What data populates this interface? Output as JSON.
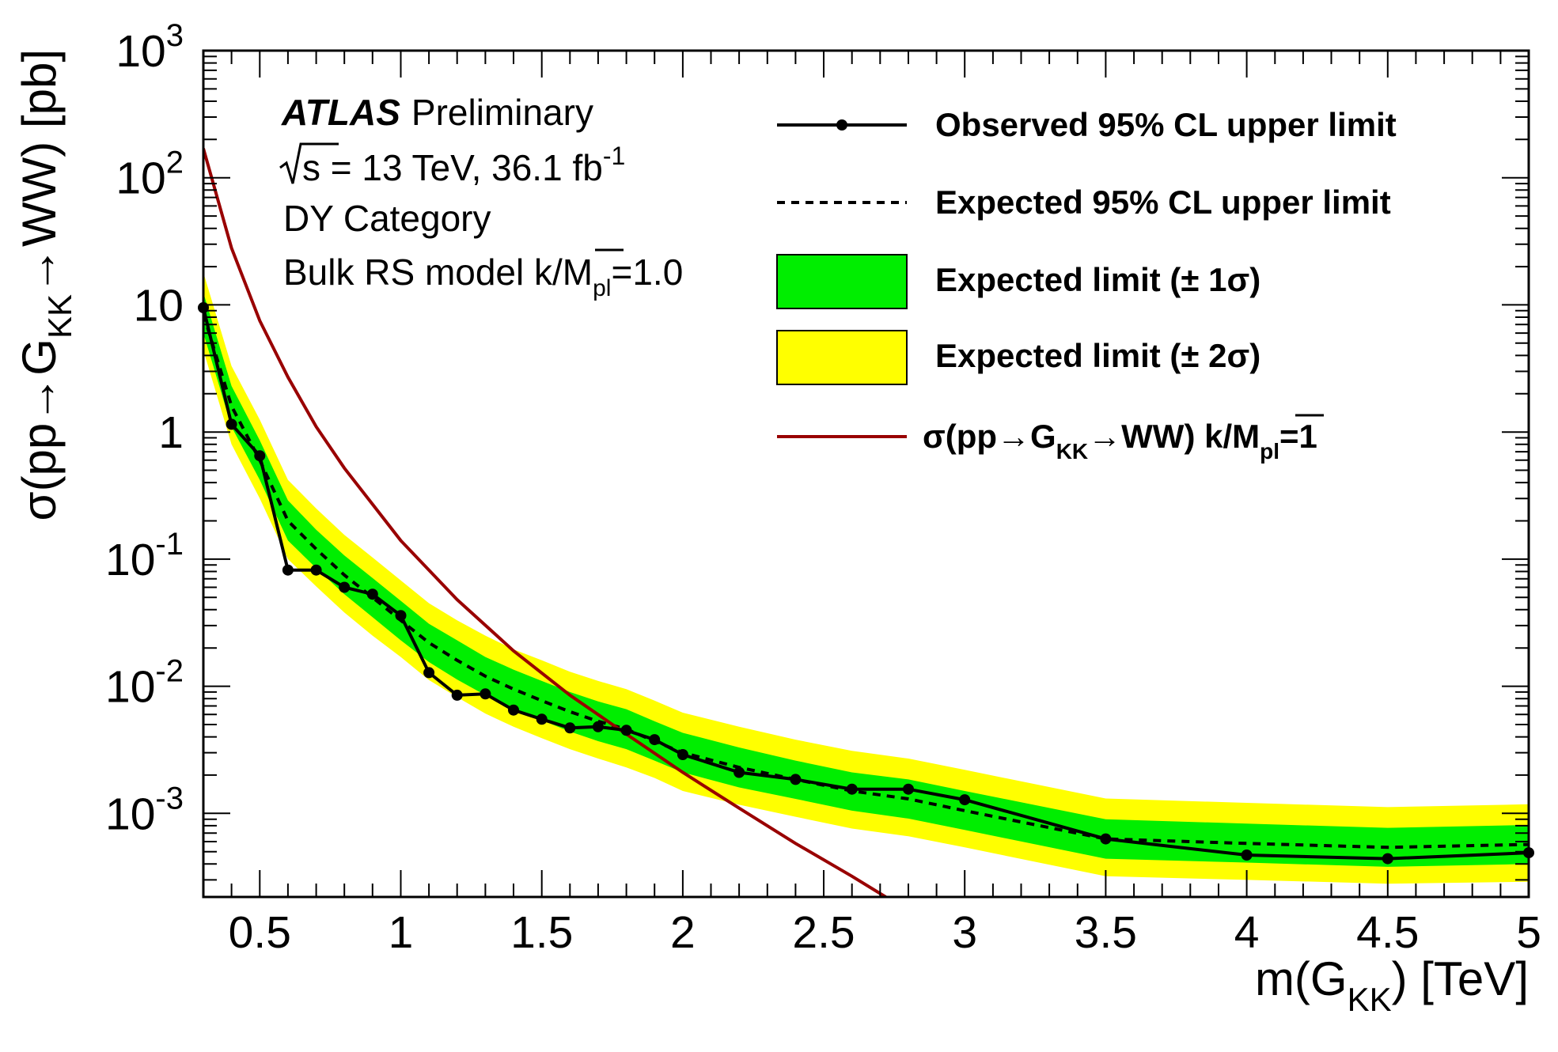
{
  "chart_data": {
    "type": "line",
    "x_axis": {
      "label_parts": [
        "m(G",
        "KK",
        ") [TeV]"
      ],
      "range": [
        0.3,
        5.0
      ],
      "ticks": [
        "0.5",
        "1",
        "1.5",
        "2",
        "2.5",
        "3",
        "3.5",
        "4",
        "4.5",
        "5"
      ],
      "tick_values": [
        0.5,
        1,
        1.5,
        2,
        2.5,
        3,
        3.5,
        4,
        4.5,
        5
      ]
    },
    "y_axis": {
      "label_parts": [
        "σ(pp→G",
        "KK",
        "→WW) [pb]"
      ],
      "scale": "log",
      "range": [
        0.00022,
        1000
      ],
      "ticks": [
        {
          "value": 1000,
          "base": "10",
          "exp": "3"
        },
        {
          "value": 100,
          "base": "10",
          "exp": "2"
        },
        {
          "value": 10,
          "base": "10",
          "exp": ""
        },
        {
          "value": 1,
          "base": "1",
          "exp": ""
        },
        {
          "value": 0.1,
          "base": "10",
          "exp": "-1"
        },
        {
          "value": 0.01,
          "base": "10",
          "exp": "-2"
        },
        {
          "value": 0.001,
          "base": "10",
          "exp": "-3"
        }
      ]
    },
    "labels": {
      "atlas": "ATLAS",
      "preliminary": "Preliminary",
      "energy_prefix": "s = 13 TeV, 36.1 fb",
      "energy_exp": "-1",
      "category": "DY Category",
      "model_prefix": "Bulk RS model k/",
      "model_m": "M",
      "model_sub": "pl",
      "model_suffix": "=1.0"
    },
    "legend": {
      "observed": "Observed 95% CL upper limit",
      "expected": "Expected 95% CL upper limit",
      "band1": "Expected limit (± 1σ)",
      "band2": "Expected limit (± 2σ)",
      "theory_prefix": "σ(pp→G",
      "theory_sub1": "KK",
      "theory_mid": "→WW) k/",
      "theory_m": "M",
      "theory_sub2": "pl",
      "theory_suffix": "=1"
    },
    "series": [
      {
        "name": "Observed 95% CL upper limit",
        "color": "#000000",
        "x": [
          0.3,
          0.4,
          0.5,
          0.6,
          0.7,
          0.8,
          0.9,
          1.0,
          1.1,
          1.2,
          1.3,
          1.4,
          1.5,
          1.6,
          1.7,
          1.8,
          1.9,
          2.0,
          2.2,
          2.4,
          2.6,
          2.8,
          3.0,
          3.5,
          4.0,
          4.5,
          5.0
        ],
        "y": [
          9.5,
          1.15,
          0.65,
          0.082,
          0.082,
          0.06,
          0.053,
          0.036,
          0.0128,
          0.0085,
          0.0087,
          0.0065,
          0.0055,
          0.0047,
          0.0048,
          0.0045,
          0.0038,
          0.0029,
          0.0021,
          0.00185,
          0.00155,
          0.00155,
          0.00128,
          0.00063,
          0.00047,
          0.00044,
          0.00049
        ]
      },
      {
        "name": "Expected 95% CL upper limit",
        "color": "#000000",
        "x": [
          0.3,
          0.4,
          0.5,
          0.6,
          0.7,
          0.8,
          0.9,
          1.0,
          1.1,
          1.2,
          1.3,
          1.4,
          1.5,
          1.6,
          1.7,
          1.8,
          1.9,
          2.0,
          2.2,
          2.4,
          2.6,
          2.8,
          3.0,
          3.5,
          4.0,
          4.5,
          5.0
        ],
        "y": [
          8.5,
          1.6,
          0.6,
          0.2,
          0.12,
          0.075,
          0.05,
          0.033,
          0.022,
          0.016,
          0.012,
          0.0095,
          0.0077,
          0.0063,
          0.0053,
          0.0046,
          0.0037,
          0.003,
          0.0023,
          0.00185,
          0.0015,
          0.0013,
          0.00105,
          0.00063,
          0.00058,
          0.00054,
          0.00057
        ]
      },
      {
        "name": "Expected limit (± 1σ)",
        "color": "#00ee00",
        "x": [
          0.3,
          0.4,
          0.5,
          0.6,
          0.7,
          0.8,
          0.9,
          1.0,
          1.1,
          1.2,
          1.3,
          1.4,
          1.5,
          1.6,
          1.7,
          1.8,
          1.9,
          2.0,
          2.2,
          2.4,
          2.6,
          2.8,
          3.0,
          3.5,
          4.0,
          4.5,
          5.0
        ],
        "low": [
          6.0,
          1.1,
          0.42,
          0.14,
          0.085,
          0.053,
          0.035,
          0.023,
          0.0155,
          0.0113,
          0.0085,
          0.0067,
          0.0054,
          0.0044,
          0.0037,
          0.0032,
          0.0026,
          0.0021,
          0.0016,
          0.0013,
          0.00105,
          0.00091,
          0.00074,
          0.00044,
          0.00041,
          0.00038,
          0.0004
        ],
        "high": [
          12.5,
          2.3,
          0.86,
          0.29,
          0.17,
          0.107,
          0.071,
          0.047,
          0.031,
          0.023,
          0.017,
          0.0135,
          0.011,
          0.009,
          0.0076,
          0.0066,
          0.0053,
          0.0043,
          0.0033,
          0.0026,
          0.0021,
          0.00185,
          0.0015,
          0.0009,
          0.00083,
          0.00077,
          0.00081
        ]
      },
      {
        "name": "Expected limit (± 2σ)",
        "color": "#ffff00",
        "x": [
          0.3,
          0.4,
          0.5,
          0.6,
          0.7,
          0.8,
          0.9,
          1.0,
          1.1,
          1.2,
          1.3,
          1.4,
          1.5,
          1.6,
          1.7,
          1.8,
          1.9,
          2.0,
          2.2,
          2.4,
          2.6,
          2.8,
          3.0,
          3.5,
          4.0,
          4.5,
          5.0
        ],
        "low": [
          4.4,
          0.8,
          0.3,
          0.1,
          0.061,
          0.038,
          0.025,
          0.017,
          0.0112,
          0.0082,
          0.0061,
          0.0048,
          0.0039,
          0.0032,
          0.0027,
          0.0023,
          0.0019,
          0.0015,
          0.00117,
          0.00094,
          0.00076,
          0.00066,
          0.00054,
          0.00032,
          0.0003,
          0.00028,
          0.00029
        ],
        "high": [
          18.0,
          3.3,
          1.25,
          0.42,
          0.25,
          0.155,
          0.103,
          0.068,
          0.045,
          0.033,
          0.025,
          0.0195,
          0.016,
          0.013,
          0.011,
          0.0095,
          0.0077,
          0.0062,
          0.0048,
          0.0038,
          0.0031,
          0.0027,
          0.0022,
          0.00131,
          0.00121,
          0.00112,
          0.00118
        ]
      },
      {
        "name": "σ(pp→GKK→WW) k/Mpl=1",
        "color": "#990000",
        "x": [
          0.3,
          0.4,
          0.5,
          0.6,
          0.7,
          0.8,
          0.9,
          1.0,
          1.2,
          1.4,
          1.6,
          1.8,
          2.0,
          2.2,
          2.4,
          2.6,
          2.72
        ],
        "y": [
          170,
          28,
          7.5,
          2.7,
          1.1,
          0.52,
          0.27,
          0.14,
          0.048,
          0.019,
          0.0085,
          0.0042,
          0.0021,
          0.0011,
          0.00058,
          0.00032,
          0.00022
        ]
      }
    ],
    "grid": false,
    "legend_position": "top-right"
  }
}
